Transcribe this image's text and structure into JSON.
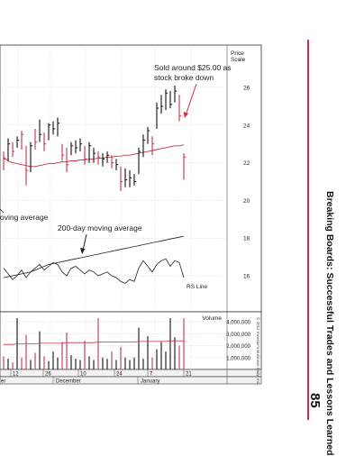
{
  "page": {
    "running_title": "Breaking Boards: Successful Trades and Lessons Learned",
    "page_number": "85",
    "copyright": "© 2012 Investor's Business Daily, Inc."
  },
  "chart_data": {
    "type": "bar",
    "price_scale_label_1": "Price",
    "price_scale_label_2": "Scale",
    "price_ticks": [
      26,
      24,
      22,
      20,
      18,
      16
    ],
    "volume_label": "Volume",
    "volume_ticks": [
      "4,000,000",
      "3,000,000",
      "2,000,000",
      "1,000,000"
    ],
    "volume_tick_values": [
      4000000,
      3000000,
      2000000,
      1000000
    ],
    "date_ticks": [
      "12",
      "26",
      "10",
      "24",
      "7",
      "21"
    ],
    "month_labels": [
      "er",
      "December",
      "January"
    ],
    "annotations": {
      "sell_line1": "Sold around $25.00 as",
      "sell_line2": "stock broke down",
      "ma_left": "oving average",
      "ma_200": "200-day moving average",
      "rs_line": "RS Line"
    },
    "price_bars": [
      {
        "high": 22.6,
        "low": 21.6,
        "close": 22.2,
        "down": true
      },
      {
        "high": 23.3,
        "low": 22.1,
        "close": 23.0,
        "down": false
      },
      {
        "high": 23.1,
        "low": 22.3,
        "close": 22.6,
        "down": true
      },
      {
        "high": 23.4,
        "low": 22.8,
        "close": 23.2,
        "down": false
      },
      {
        "high": 23.7,
        "low": 22.7,
        "close": 23.5,
        "down": true
      },
      {
        "high": 22.9,
        "low": 20.8,
        "close": 21.6,
        "down": true
      },
      {
        "high": 23.1,
        "low": 21.5,
        "close": 22.9,
        "down": false
      },
      {
        "high": 23.8,
        "low": 22.7,
        "close": 23.1,
        "down": true
      },
      {
        "high": 24.3,
        "low": 23.1,
        "close": 23.5,
        "down": false
      },
      {
        "high": 23.6,
        "low": 22.6,
        "close": 23.0,
        "down": true
      },
      {
        "high": 24.1,
        "low": 23.2,
        "close": 24.0,
        "down": false
      },
      {
        "high": 24.2,
        "low": 23.5,
        "close": 23.8,
        "down": false
      },
      {
        "high": 24.4,
        "low": 23.4,
        "close": 24.1,
        "down": false
      },
      {
        "high": 23.0,
        "low": 22.1,
        "close": 22.4,
        "down": true
      },
      {
        "high": 22.8,
        "low": 21.5,
        "close": 21.9,
        "down": true
      },
      {
        "high": 23.1,
        "low": 22.4,
        "close": 22.9,
        "down": false
      },
      {
        "high": 23.2,
        "low": 22.5,
        "close": 22.8,
        "down": false
      },
      {
        "high": 23.3,
        "low": 22.6,
        "close": 23.0,
        "down": false
      },
      {
        "high": 22.9,
        "low": 21.9,
        "close": 22.2,
        "down": true
      },
      {
        "high": 23.1,
        "low": 22.0,
        "close": 22.9,
        "down": false
      },
      {
        "high": 22.8,
        "low": 22.0,
        "close": 22.5,
        "down": false
      },
      {
        "high": 22.6,
        "low": 21.9,
        "close": 22.3,
        "down": true
      },
      {
        "high": 22.5,
        "low": 21.8,
        "close": 22.2,
        "down": false
      },
      {
        "high": 22.6,
        "low": 22.0,
        "close": 22.4,
        "down": false
      },
      {
        "high": 22.4,
        "low": 21.7,
        "close": 22.0,
        "down": true
      },
      {
        "high": 22.2,
        "low": 21.6,
        "close": 21.9,
        "down": false
      },
      {
        "high": 21.8,
        "low": 20.5,
        "close": 21.0,
        "down": true
      },
      {
        "high": 21.7,
        "low": 20.7,
        "close": 21.1,
        "down": false
      },
      {
        "high": 21.6,
        "low": 20.7,
        "close": 21.2,
        "down": false
      },
      {
        "high": 21.4,
        "low": 20.8,
        "close": 21.0,
        "down": false
      },
      {
        "high": 22.8,
        "low": 21.4,
        "close": 22.6,
        "down": false
      },
      {
        "high": 23.5,
        "low": 22.3,
        "close": 23.2,
        "down": false
      },
      {
        "high": 23.9,
        "low": 23.0,
        "close": 23.7,
        "down": false
      },
      {
        "high": 23.4,
        "low": 22.4,
        "close": 23.0,
        "down": true
      },
      {
        "high": 25.2,
        "low": 23.8,
        "close": 24.9,
        "down": false
      },
      {
        "high": 25.6,
        "low": 24.6,
        "close": 25.0,
        "down": false
      },
      {
        "high": 25.9,
        "low": 24.8,
        "close": 25.7,
        "down": false
      },
      {
        "high": 25.8,
        "low": 24.9,
        "close": 25.1,
        "down": false
      },
      {
        "high": 26.1,
        "low": 25.2,
        "close": 25.8,
        "down": false
      },
      {
        "high": 25.6,
        "low": 24.2,
        "close": 24.5,
        "down": true
      },
      {
        "high": 22.5,
        "low": 21.1,
        "close": 22.3,
        "down": true
      }
    ],
    "ma_50": [
      22.3,
      22.1,
      22.0,
      21.95,
      21.9,
      21.85,
      21.8,
      21.8,
      21.85,
      21.9,
      21.95,
      21.95,
      22.0,
      22.05,
      22.05,
      22.1,
      22.1,
      22.15,
      22.15,
      22.2,
      22.2,
      22.25,
      22.25,
      22.3,
      22.3,
      22.35,
      22.35,
      22.4,
      22.4,
      22.45,
      22.5,
      22.55,
      22.6,
      22.65,
      22.7,
      22.75,
      22.8,
      22.85,
      22.9,
      22.9,
      22.95
    ],
    "ma_200": [
      15.9,
      15.95,
      16.0,
      16.05,
      16.1,
      16.15,
      16.2,
      16.3,
      16.4,
      16.5,
      16.6,
      16.65,
      16.7,
      16.75,
      16.8,
      16.85,
      16.9,
      16.95,
      17.0,
      17.05,
      17.1,
      17.15,
      17.2,
      17.25,
      17.3,
      17.35,
      17.4,
      17.45,
      17.5,
      17.55,
      17.6,
      17.65,
      17.7,
      17.75,
      17.8,
      17.85,
      17.9,
      17.95,
      18.0,
      18.05,
      18.1
    ],
    "rs_line": [
      16.4,
      16.1,
      15.8,
      16.0,
      16.3,
      15.9,
      16.2,
      16.4,
      16.6,
      16.3,
      16.5,
      16.7,
      16.6,
      16.2,
      16.0,
      16.4,
      16.5,
      16.3,
      16.1,
      16.3,
      16.2,
      16.0,
      16.1,
      16.2,
      16.0,
      15.9,
      15.7,
      15.6,
      15.8,
      15.7,
      16.4,
      16.8,
      16.5,
      16.2,
      16.6,
      16.8,
      16.9,
      16.5,
      16.8,
      16.7,
      15.9
    ],
    "volume": [
      1100000,
      900000,
      600000,
      4300000,
      1000000,
      2900000,
      800000,
      1400000,
      3200000,
      1100000,
      700000,
      1500000,
      1000000,
      2300000,
      3100000,
      1200000,
      900000,
      800000,
      2400000,
      1100000,
      800000,
      4300000,
      1000000,
      900000,
      1500000,
      800000,
      1900000,
      1000000,
      800000,
      1000000,
      3500000,
      900000,
      2800000,
      1000000,
      1700000,
      2300000,
      1500000,
      4300000,
      2700000,
      2000000,
      4300000
    ],
    "volume_ma": [
      2100000,
      2100000,
      2100000,
      2150000,
      2150000,
      2150000,
      2150000,
      2150000,
      2200000,
      2200000,
      2200000,
      2200000,
      2200000,
      2200000,
      2250000,
      2250000,
      2250000,
      2250000,
      2250000,
      2250000,
      2250000,
      2300000,
      2300000,
      2300000,
      2300000,
      2300000,
      2300000,
      2300000,
      2300000,
      2300000,
      2350000,
      2350000,
      2350000,
      2350000,
      2350000,
      2350000,
      2350000,
      2400000,
      2400000,
      2400000,
      2400000
    ]
  }
}
